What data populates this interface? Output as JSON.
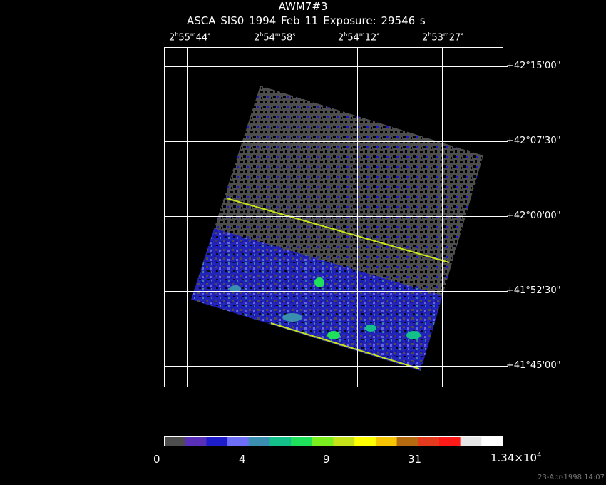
{
  "header": {
    "title": "AWM7#3",
    "subtitle": "ASCA SIS0   1994 Feb 11    Exposure: 29546 s"
  },
  "ra_axis": [
    {
      "h": "2",
      "m": "55",
      "s": "44"
    },
    {
      "h": "2",
      "m": "54",
      "s": "58"
    },
    {
      "h": "2",
      "m": "54",
      "s": "12"
    },
    {
      "h": "2",
      "m": "53",
      "s": "27"
    }
  ],
  "dec_axis": [
    "+42°15'00\"",
    "+42°07'30\"",
    "+42°00'00\"",
    "+41°52'30\"",
    "+41°45'00\""
  ],
  "colorbar": {
    "colors": [
      "#4d4d4d",
      "#5a2fb8",
      "#1d1dcc",
      "#6d6df5",
      "#3a8fb0",
      "#13c08a",
      "#1ee05a",
      "#7aee1e",
      "#c6e31a",
      "#ffff00",
      "#f6c400",
      "#b56a10",
      "#e43a1e",
      "#ff1a1a",
      "#e6e6e6",
      "#ffffff"
    ],
    "labels": {
      "l0": "0",
      "l1": "4",
      "l2": "9",
      "l3": "31",
      "l4_mant": "1.34×10",
      "l4_exp": "4"
    }
  },
  "footer": "23-Apr-1998 14:07"
}
